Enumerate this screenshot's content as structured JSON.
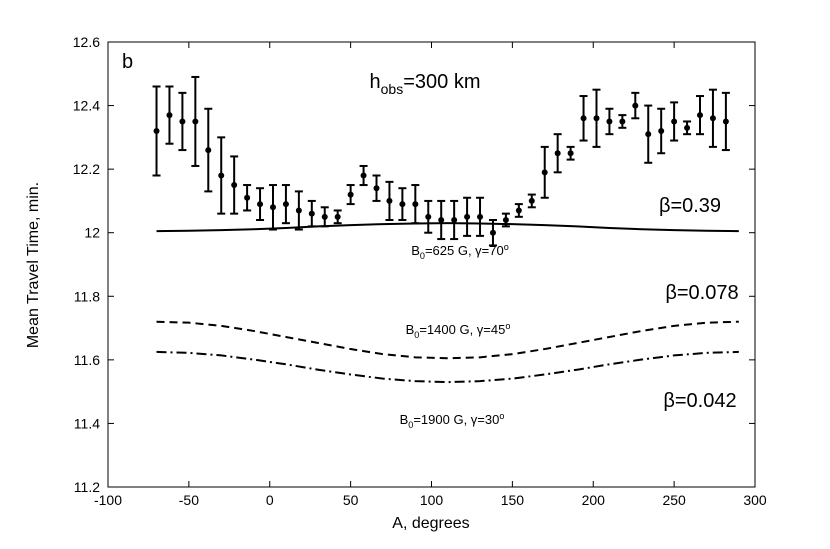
{
  "chart_data": {
    "type": "errorbar",
    "xlabel": "A, degrees",
    "ylabel": "Mean Travel Time, min.",
    "xlim": [
      -100,
      300
    ],
    "xticks": [
      -100,
      -50,
      0,
      50,
      100,
      150,
      200,
      250,
      300
    ],
    "ylim": [
      11.2,
      12.6
    ],
    "yticks": [
      11.2,
      11.4,
      11.6,
      11.8,
      12,
      12.2,
      12.4,
      12.6
    ],
    "series": [
      {
        "color": "#000000",
        "line_style": "errorbar",
        "x": [
          -70,
          -62,
          -54,
          -46,
          -38,
          -30,
          -22,
          -14,
          -6,
          2,
          10,
          18,
          26,
          34,
          42,
          50,
          58,
          66,
          74,
          82,
          90,
          98,
          106,
          114,
          122,
          130,
          138,
          146,
          154,
          162,
          170,
          178,
          186,
          194,
          202,
          210,
          218,
          226,
          234,
          242,
          250,
          258,
          266,
          274,
          282
        ],
        "values": [
          12.32,
          12.37,
          12.35,
          12.35,
          12.26,
          12.18,
          12.15,
          12.11,
          12.09,
          12.08,
          12.09,
          12.07,
          12.06,
          12.05,
          12.05,
          12.12,
          12.18,
          12.14,
          12.1,
          12.09,
          12.09,
          12.05,
          12.04,
          12.04,
          12.05,
          12.05,
          12.0,
          12.04,
          12.07,
          12.1,
          12.19,
          12.25,
          12.25,
          12.36,
          12.36,
          12.35,
          12.35,
          12.4,
          12.31,
          12.32,
          12.35,
          12.33,
          12.37,
          12.36,
          12.35
        ],
        "errors": [
          0.14,
          0.09,
          0.09,
          0.14,
          0.13,
          0.12,
          0.09,
          0.04,
          0.05,
          0.07,
          0.06,
          0.06,
          0.04,
          0.03,
          0.02,
          0.03,
          0.03,
          0.04,
          0.06,
          0.05,
          0.06,
          0.05,
          0.06,
          0.06,
          0.06,
          0.06,
          0.04,
          0.02,
          0.02,
          0.02,
          0.08,
          0.06,
          0.02,
          0.07,
          0.09,
          0.04,
          0.02,
          0.04,
          0.09,
          0.07,
          0.06,
          0.02,
          0.06,
          0.09,
          0.09
        ]
      },
      {
        "color": "#000000",
        "line_style": "solid",
        "x": [
          -70,
          -50,
          -30,
          -10,
          10,
          30,
          50,
          70,
          90,
          110,
          130,
          150,
          170,
          190,
          210,
          230,
          250,
          270,
          290
        ],
        "values": [
          12.005,
          12.006,
          12.008,
          12.011,
          12.015,
          12.02,
          12.024,
          12.027,
          12.029,
          12.03,
          12.029,
          12.027,
          12.024,
          12.02,
          12.015,
          12.011,
          12.008,
          12.006,
          12.005
        ]
      },
      {
        "color": "#000000",
        "line_style": "dashed",
        "x": [
          -70,
          -50,
          -30,
          -10,
          10,
          30,
          50,
          70,
          90,
          110,
          130,
          150,
          170,
          190,
          210,
          230,
          250,
          270,
          290
        ],
        "values": [
          11.72,
          11.717,
          11.707,
          11.691,
          11.672,
          11.653,
          11.634,
          11.618,
          11.608,
          11.605,
          11.608,
          11.618,
          11.634,
          11.653,
          11.672,
          11.691,
          11.707,
          11.717,
          11.72
        ]
      },
      {
        "color": "#000000",
        "line_style": "dashdot",
        "x": [
          -70,
          -50,
          -30,
          -10,
          10,
          30,
          50,
          70,
          90,
          110,
          130,
          150,
          170,
          190,
          210,
          230,
          250,
          270,
          290
        ],
        "values": [
          11.625,
          11.622,
          11.614,
          11.601,
          11.586,
          11.569,
          11.554,
          11.541,
          11.533,
          11.53,
          11.533,
          11.541,
          11.554,
          11.569,
          11.586,
          11.601,
          11.614,
          11.622,
          11.625
        ]
      }
    ],
    "annotations": [
      {
        "parts": [
          {
            "text": "b"
          }
        ]
      },
      {
        "parts": [
          {
            "text": "h"
          },
          {
            "text": "obs",
            "shift": "sub"
          },
          {
            "text": "=300 km"
          }
        ]
      },
      {
        "parts": [
          {
            "text": "β=0.39"
          }
        ]
      },
      {
        "parts": [
          {
            "text": "β=0.078"
          }
        ]
      },
      {
        "parts": [
          {
            "text": "β=0.042"
          }
        ]
      },
      {
        "parts": [
          {
            "text": "B"
          },
          {
            "text": "0",
            "shift": "sub"
          },
          {
            "text": "=625 G, γ=70"
          },
          {
            "text": "o",
            "shift": "sup"
          }
        ]
      },
      {
        "parts": [
          {
            "text": "B"
          },
          {
            "text": "0",
            "shift": "sub"
          },
          {
            "text": "=1400 G, γ=45"
          },
          {
            "text": "o",
            "shift": "sup"
          }
        ]
      },
      {
        "parts": [
          {
            "text": "B"
          },
          {
            "text": "0",
            "shift": "sub"
          },
          {
            "text": "=1900 G, γ=30"
          },
          {
            "text": "o",
            "shift": "sup"
          }
        ]
      }
    ]
  }
}
